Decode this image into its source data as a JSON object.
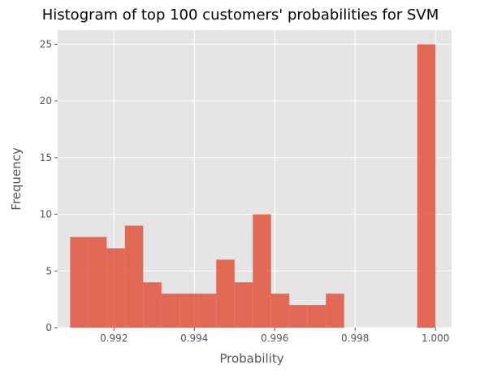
{
  "chart_data": {
    "type": "bar",
    "title": "Histogram of top 100 customers' probabilities for SVM",
    "xlabel": "Probability",
    "ylabel": "Frequency",
    "xlim": [
      0.9906,
      1.0004
    ],
    "ylim": [
      0,
      26.25
    ],
    "x_ticks": [
      0.992,
      0.994,
      0.996,
      0.998,
      1.0
    ],
    "x_tick_labels": [
      "0.992",
      "0.994",
      "0.996",
      "0.998",
      "1.000"
    ],
    "y_ticks": [
      0,
      5,
      10,
      15,
      20,
      25
    ],
    "y_tick_labels": [
      "0",
      "5",
      "10",
      "15",
      "20",
      "25"
    ],
    "grid": true,
    "bin_start": 0.99091,
    "bin_width": 0.0004545,
    "counts": [
      8,
      8,
      7,
      9,
      4,
      3,
      3,
      3,
      6,
      4,
      10,
      3,
      2,
      2,
      3,
      0,
      0,
      0,
      0,
      25
    ],
    "colors": {
      "background": "#e5e5e5",
      "bar": "#e24a33",
      "bar_opacity": 0.8
    }
  }
}
